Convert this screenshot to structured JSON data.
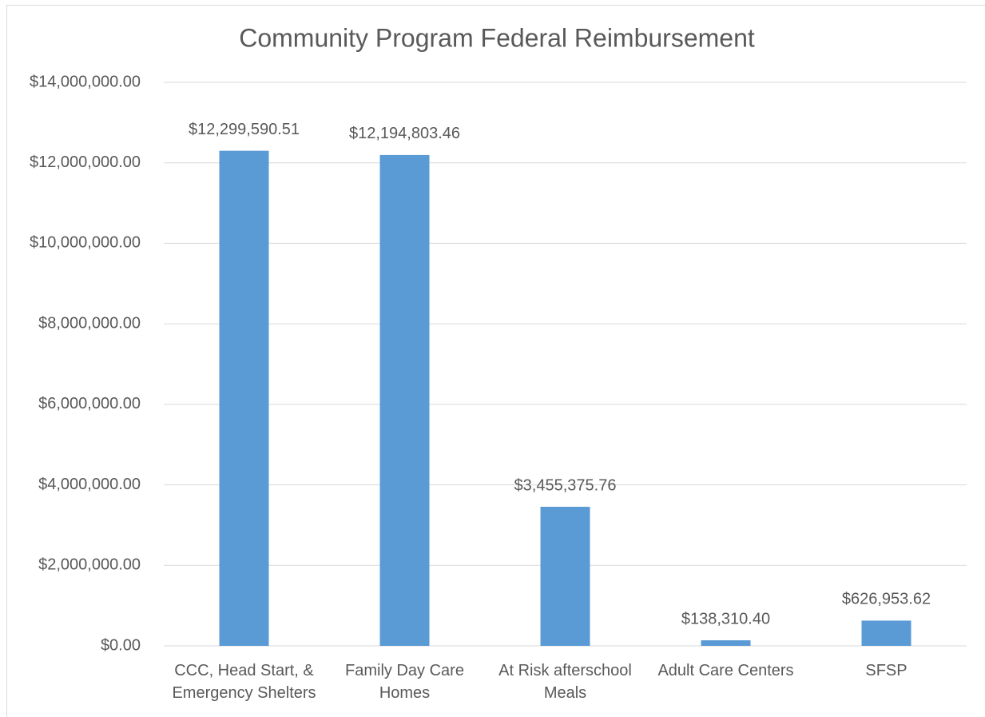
{
  "chart_data": {
    "type": "bar",
    "title": "Community Program Federal Reimbursement",
    "categories": [
      "CCC, Head Start, & Emergency Shelters",
      "Family Day Care Homes",
      "At Risk afterschool Meals",
      "Adult Care Centers",
      "SFSP"
    ],
    "values": [
      12299590.51,
      12194803.46,
      3455375.76,
      138310.4,
      626953.62
    ],
    "value_labels": [
      "$12,299,590.51",
      "$12,194,803.46",
      "$3,455,375.76",
      "$138,310.40",
      "$626,953.62"
    ],
    "color": "#5b9bd5",
    "ylim": [
      0,
      14000000
    ],
    "yticks": [
      {
        "value": 0,
        "label": "$0.00"
      },
      {
        "value": 2000000,
        "label": "$2,000,000.00"
      },
      {
        "value": 4000000,
        "label": "$4,000,000.00"
      },
      {
        "value": 6000000,
        "label": "$6,000,000.00"
      },
      {
        "value": 8000000,
        "label": "$8,000,000.00"
      },
      {
        "value": 10000000,
        "label": "$10,000,000.00"
      },
      {
        "value": 12000000,
        "label": "$12,000,000.00"
      },
      {
        "value": 14000000,
        "label": "$14,000,000.00"
      }
    ],
    "grid": true
  }
}
